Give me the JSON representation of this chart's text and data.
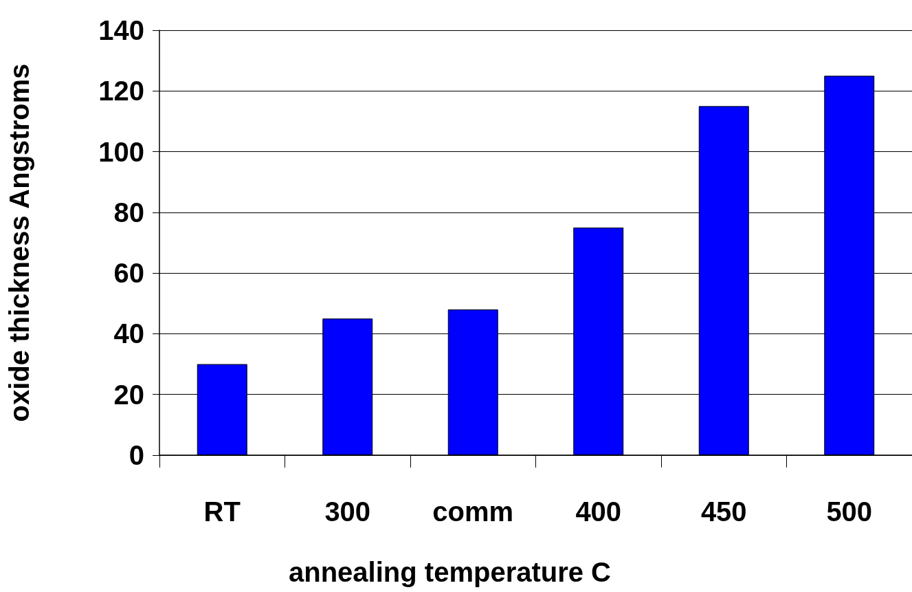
{
  "chart_data": {
    "type": "bar",
    "xlabel": "annealing temperature C",
    "ylabel": "oxide thickness Angstroms",
    "categories": [
      "RT",
      "300",
      "comm",
      "400",
      "450",
      "500"
    ],
    "values": [
      30,
      45,
      48,
      75,
      115,
      125
    ],
    "color": "#0000ff",
    "ylim": [
      0,
      140
    ],
    "yticks": [
      0,
      20,
      40,
      60,
      80,
      100,
      120,
      140
    ],
    "grid": "y"
  }
}
